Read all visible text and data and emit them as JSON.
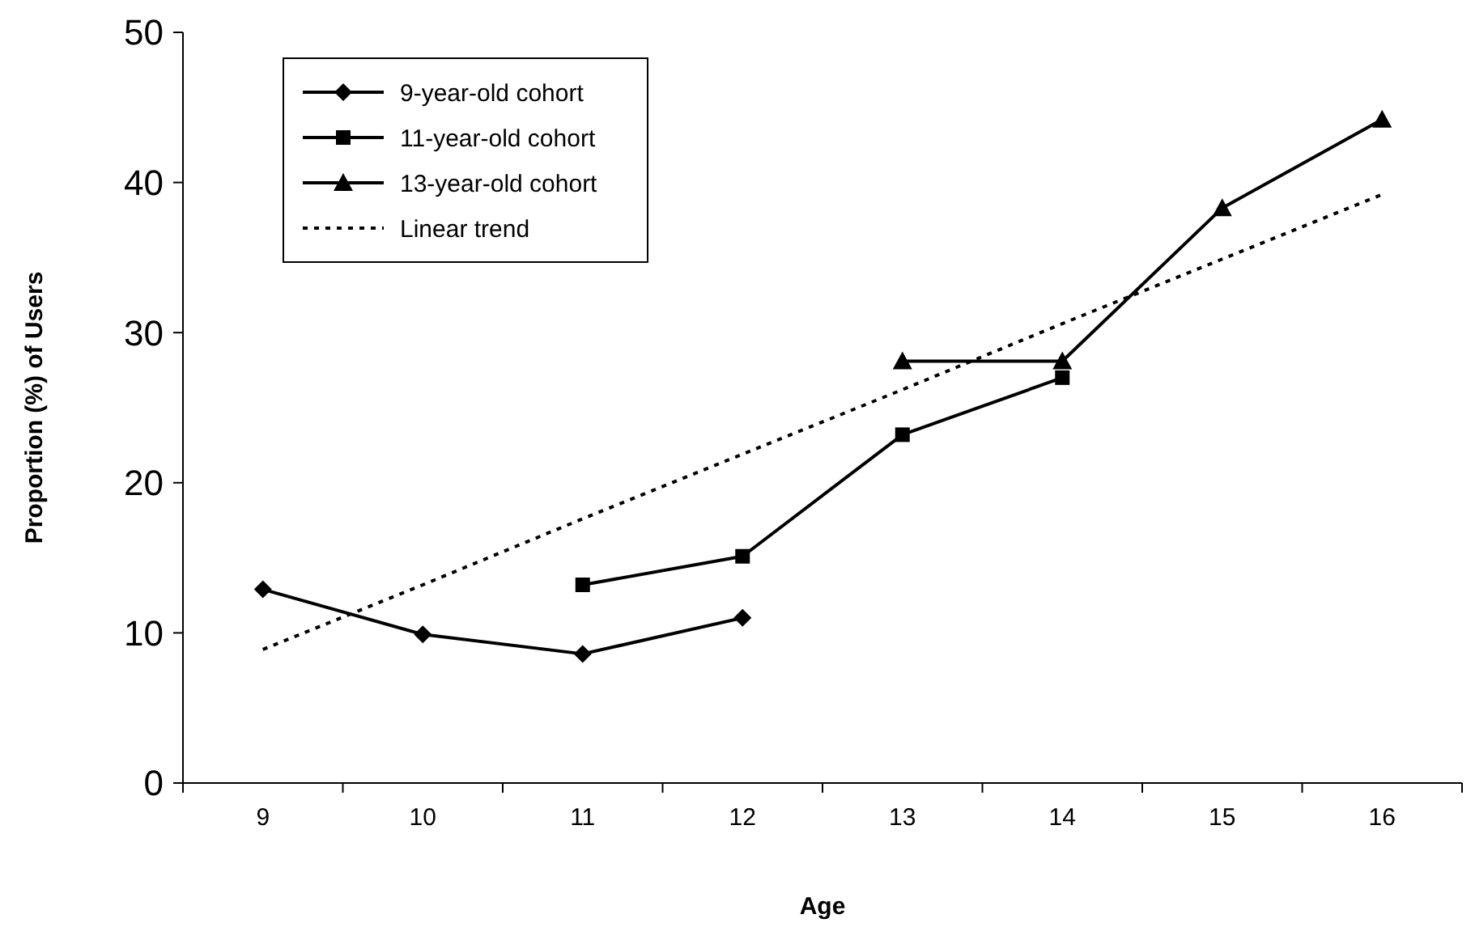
{
  "chart_data": {
    "type": "line",
    "xlabel": "Age",
    "ylabel": "Proportion (%) of Users",
    "categories": [
      "9",
      "10",
      "11",
      "12",
      "13",
      "14",
      "15",
      "16"
    ],
    "ylim": [
      0,
      50
    ],
    "yticks": [
      0,
      10,
      20,
      30,
      40,
      50
    ],
    "grid": false,
    "legend": "top left",
    "series": [
      {
        "name": "9-year-old cohort",
        "color": "#000000",
        "marker": "diamond",
        "line_style": "solid",
        "values": [
          12.9,
          9.9,
          8.6,
          11.0,
          null,
          null,
          null,
          null
        ]
      },
      {
        "name": "11-year-old cohort",
        "color": "#000000",
        "marker": "square",
        "line_style": "solid",
        "values": [
          null,
          null,
          13.2,
          15.1,
          23.2,
          27.0,
          null,
          null
        ]
      },
      {
        "name": "13-year-old cohort",
        "color": "#000000",
        "marker": "triangle",
        "line_style": "solid",
        "values": [
          null,
          null,
          null,
          null,
          28.1,
          28.1,
          38.3,
          44.2
        ]
      },
      {
        "name": "Linear trend",
        "color": "#000000",
        "marker": "none",
        "line_style": "dotted",
        "values": [
          8.9,
          13.2,
          17.6,
          21.9,
          26.2,
          30.6,
          34.9,
          39.2
        ]
      }
    ]
  }
}
